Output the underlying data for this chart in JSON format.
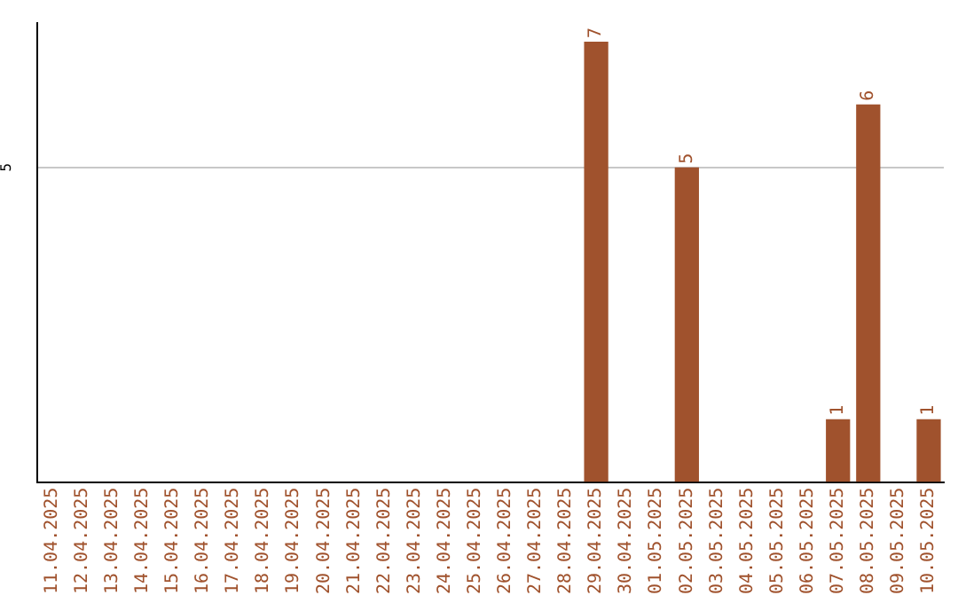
{
  "chart_data": {
    "type": "bar",
    "categories": [
      "11.04.2025",
      "12.04.2025",
      "13.04.2025",
      "14.04.2025",
      "15.04.2025",
      "16.04.2025",
      "17.04.2025",
      "18.04.2025",
      "19.04.2025",
      "20.04.2025",
      "21.04.2025",
      "22.04.2025",
      "23.04.2025",
      "24.04.2025",
      "25.04.2025",
      "26.04.2025",
      "27.04.2025",
      "28.04.2025",
      "29.04.2025",
      "30.04.2025",
      "01.05.2025",
      "02.05.2025",
      "03.05.2025",
      "04.05.2025",
      "05.05.2025",
      "06.05.2025",
      "07.05.2025",
      "08.05.2025",
      "09.05.2025",
      "10.05.2025"
    ],
    "values": [
      null,
      null,
      null,
      null,
      null,
      null,
      null,
      null,
      null,
      null,
      null,
      null,
      null,
      null,
      null,
      null,
      null,
      null,
      7,
      null,
      null,
      5,
      null,
      null,
      null,
      null,
      1,
      6,
      null,
      1
    ],
    "color": "#a0522d",
    "ylim": [
      0,
      7.3
    ],
    "yticks": [
      5
    ],
    "grid": "y",
    "data_labels": true,
    "legend": false
  }
}
